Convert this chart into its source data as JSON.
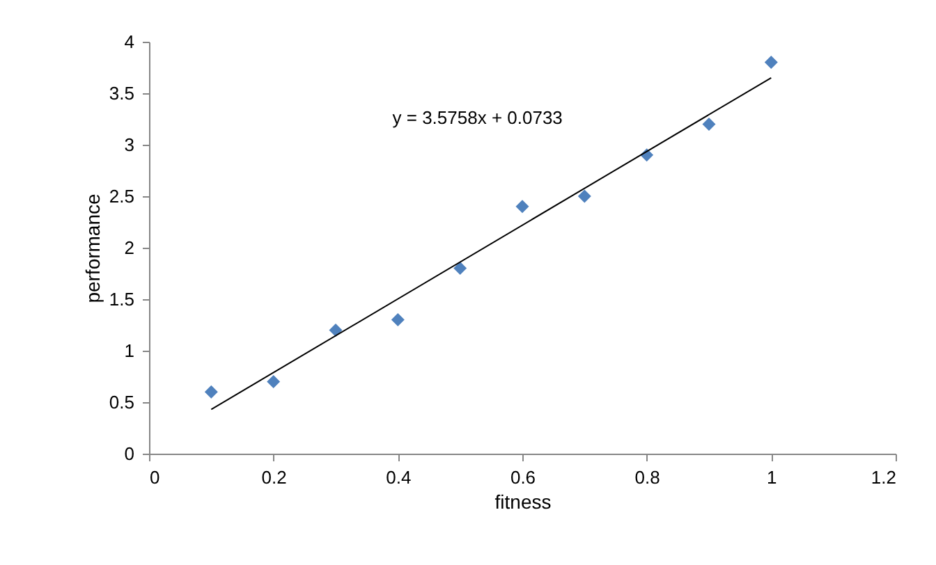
{
  "chart_data": {
    "type": "scatter",
    "xlabel": "fitness",
    "ylabel": "performance",
    "xlim": [
      0,
      1.2
    ],
    "xticks": [
      0,
      0.2,
      0.4,
      0.6,
      0.8,
      1,
      1.2
    ],
    "ylim": [
      0,
      4
    ],
    "yticks": [
      0,
      0.5,
      1,
      1.5,
      2,
      2.5,
      3,
      3.5,
      4
    ],
    "grid": false,
    "marker": "diamond",
    "series": [
      {
        "type": "scatter",
        "color": "#4f81bd",
        "x": [
          0.1,
          0.2,
          0.3,
          0.4,
          0.5,
          0.6,
          0.7,
          0.8,
          0.9,
          1.0
        ],
        "values": [
          0.6,
          0.7,
          1.2,
          1.3,
          1.8,
          2.4,
          2.5,
          2.9,
          3.2,
          3.8
        ]
      },
      {
        "type": "line",
        "color": "#000000",
        "line_style": "solid",
        "marker": "none",
        "x": [
          0.1,
          1.0
        ],
        "values": [
          0.43,
          3.65
        ]
      }
    ],
    "annotations": [
      "y = 3.5758x + 0.0733"
    ]
  }
}
